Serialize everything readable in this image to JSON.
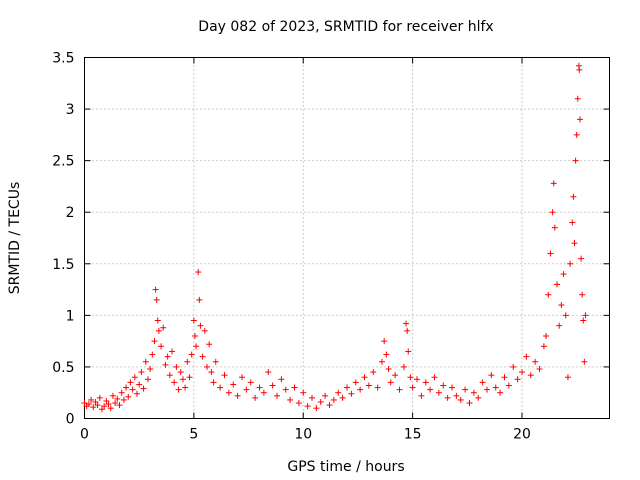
{
  "chart_data": {
    "type": "scatter",
    "title": "Day 082 of 2023, SRMTID for receiver hlfx",
    "xlabel": "GPS time / hours",
    "ylabel": "SRMTID / TECUs",
    "xlim": [
      0,
      24
    ],
    "ylim": [
      0,
      3.5
    ],
    "x_ticks": [
      0,
      5,
      10,
      15,
      20
    ],
    "x_tick_labels": [
      "0",
      "5",
      "10",
      "15",
      "20"
    ],
    "y_ticks": [
      0,
      0.5,
      1,
      1.5,
      2,
      2.5,
      3,
      3.5
    ],
    "y_tick_labels": [
      "0",
      "0.5",
      "1",
      "1.5",
      "2",
      "2.5",
      "3",
      "3.5"
    ],
    "grid": true,
    "marker": "+",
    "series": [
      {
        "name": "SRMTID",
        "color": "#ff0000",
        "points": [
          [
            0.0,
            0.15
          ],
          [
            0.1,
            0.12
          ],
          [
            0.2,
            0.14
          ],
          [
            0.3,
            0.18
          ],
          [
            0.4,
            0.11
          ],
          [
            0.5,
            0.16
          ],
          [
            0.6,
            0.13
          ],
          [
            0.7,
            0.2
          ],
          [
            0.8,
            0.09
          ],
          [
            0.9,
            0.12
          ],
          [
            1.0,
            0.17
          ],
          [
            1.1,
            0.14
          ],
          [
            1.2,
            0.1
          ],
          [
            1.3,
            0.22
          ],
          [
            1.4,
            0.15
          ],
          [
            1.5,
            0.19
          ],
          [
            1.6,
            0.13
          ],
          [
            1.7,
            0.25
          ],
          [
            1.8,
            0.18
          ],
          [
            1.9,
            0.3
          ],
          [
            2.0,
            0.21
          ],
          [
            2.1,
            0.35
          ],
          [
            2.2,
            0.28
          ],
          [
            2.3,
            0.4
          ],
          [
            2.4,
            0.24
          ],
          [
            2.5,
            0.33
          ],
          [
            2.6,
            0.45
          ],
          [
            2.7,
            0.29
          ],
          [
            2.8,
            0.55
          ],
          [
            2.9,
            0.38
          ],
          [
            3.0,
            0.48
          ],
          [
            3.1,
            0.62
          ],
          [
            3.2,
            0.75
          ],
          [
            3.25,
            1.25
          ],
          [
            3.3,
            1.15
          ],
          [
            3.35,
            0.95
          ],
          [
            3.4,
            0.85
          ],
          [
            3.5,
            0.7
          ],
          [
            3.6,
            0.88
          ],
          [
            3.7,
            0.52
          ],
          [
            3.8,
            0.6
          ],
          [
            3.9,
            0.42
          ],
          [
            4.0,
            0.65
          ],
          [
            4.1,
            0.35
          ],
          [
            4.2,
            0.5
          ],
          [
            4.3,
            0.28
          ],
          [
            4.4,
            0.45
          ],
          [
            4.5,
            0.38
          ],
          [
            4.6,
            0.3
          ],
          [
            4.7,
            0.55
          ],
          [
            4.8,
            0.4
          ],
          [
            4.9,
            0.62
          ],
          [
            5.0,
            0.95
          ],
          [
            5.05,
            0.8
          ],
          [
            5.1,
            0.7
          ],
          [
            5.2,
            1.42
          ],
          [
            5.25,
            1.15
          ],
          [
            5.3,
            0.9
          ],
          [
            5.4,
            0.6
          ],
          [
            5.5,
            0.85
          ],
          [
            5.6,
            0.5
          ],
          [
            5.7,
            0.72
          ],
          [
            5.8,
            0.45
          ],
          [
            5.9,
            0.35
          ],
          [
            6.0,
            0.55
          ],
          [
            6.2,
            0.3
          ],
          [
            6.4,
            0.42
          ],
          [
            6.6,
            0.25
          ],
          [
            6.8,
            0.33
          ],
          [
            7.0,
            0.22
          ],
          [
            7.2,
            0.4
          ],
          [
            7.4,
            0.28
          ],
          [
            7.6,
            0.35
          ],
          [
            7.8,
            0.2
          ],
          [
            8.0,
            0.3
          ],
          [
            8.2,
            0.25
          ],
          [
            8.4,
            0.45
          ],
          [
            8.6,
            0.32
          ],
          [
            8.8,
            0.22
          ],
          [
            9.0,
            0.38
          ],
          [
            9.2,
            0.28
          ],
          [
            9.4,
            0.18
          ],
          [
            9.6,
            0.3
          ],
          [
            9.8,
            0.15
          ],
          [
            10.0,
            0.25
          ],
          [
            10.2,
            0.12
          ],
          [
            10.4,
            0.2
          ],
          [
            10.6,
            0.1
          ],
          [
            10.8,
            0.16
          ],
          [
            11.0,
            0.22
          ],
          [
            11.2,
            0.13
          ],
          [
            11.4,
            0.18
          ],
          [
            11.6,
            0.25
          ],
          [
            11.8,
            0.2
          ],
          [
            12.0,
            0.3
          ],
          [
            12.2,
            0.24
          ],
          [
            12.4,
            0.35
          ],
          [
            12.6,
            0.28
          ],
          [
            12.8,
            0.4
          ],
          [
            13.0,
            0.32
          ],
          [
            13.2,
            0.45
          ],
          [
            13.4,
            0.3
          ],
          [
            13.6,
            0.55
          ],
          [
            13.7,
            0.75
          ],
          [
            13.8,
            0.62
          ],
          [
            13.9,
            0.48
          ],
          [
            14.0,
            0.35
          ],
          [
            14.2,
            0.42
          ],
          [
            14.4,
            0.28
          ],
          [
            14.6,
            0.5
          ],
          [
            14.7,
            0.92
          ],
          [
            14.75,
            0.85
          ],
          [
            14.8,
            0.65
          ],
          [
            14.9,
            0.4
          ],
          [
            15.0,
            0.3
          ],
          [
            15.2,
            0.38
          ],
          [
            15.4,
            0.22
          ],
          [
            15.6,
            0.35
          ],
          [
            15.8,
            0.28
          ],
          [
            16.0,
            0.4
          ],
          [
            16.2,
            0.25
          ],
          [
            16.4,
            0.32
          ],
          [
            16.6,
            0.2
          ],
          [
            16.8,
            0.3
          ],
          [
            17.0,
            0.22
          ],
          [
            17.2,
            0.18
          ],
          [
            17.4,
            0.28
          ],
          [
            17.6,
            0.15
          ],
          [
            17.8,
            0.25
          ],
          [
            18.0,
            0.2
          ],
          [
            18.2,
            0.35
          ],
          [
            18.4,
            0.28
          ],
          [
            18.6,
            0.42
          ],
          [
            18.8,
            0.3
          ],
          [
            19.0,
            0.25
          ],
          [
            19.2,
            0.4
          ],
          [
            19.4,
            0.32
          ],
          [
            19.6,
            0.5
          ],
          [
            19.8,
            0.38
          ],
          [
            20.0,
            0.45
          ],
          [
            20.2,
            0.6
          ],
          [
            20.4,
            0.42
          ],
          [
            20.6,
            0.55
          ],
          [
            20.8,
            0.48
          ],
          [
            21.0,
            0.7
          ],
          [
            21.1,
            0.8
          ],
          [
            21.2,
            1.2
          ],
          [
            21.3,
            1.6
          ],
          [
            21.4,
            2.0
          ],
          [
            21.45,
            2.28
          ],
          [
            21.5,
            1.85
          ],
          [
            21.6,
            1.3
          ],
          [
            21.7,
            0.9
          ],
          [
            21.8,
            1.1
          ],
          [
            21.9,
            1.4
          ],
          [
            22.0,
            1.0
          ],
          [
            22.1,
            0.4
          ],
          [
            22.2,
            1.5
          ],
          [
            22.3,
            1.9
          ],
          [
            22.35,
            2.15
          ],
          [
            22.4,
            1.7
          ],
          [
            22.45,
            2.5
          ],
          [
            22.5,
            2.75
          ],
          [
            22.55,
            3.1
          ],
          [
            22.6,
            3.42
          ],
          [
            22.62,
            3.38
          ],
          [
            22.65,
            2.9
          ],
          [
            22.7,
            1.55
          ],
          [
            22.75,
            1.2
          ],
          [
            22.8,
            0.95
          ],
          [
            22.85,
            0.55
          ],
          [
            22.9,
            1.0
          ]
        ]
      }
    ]
  }
}
